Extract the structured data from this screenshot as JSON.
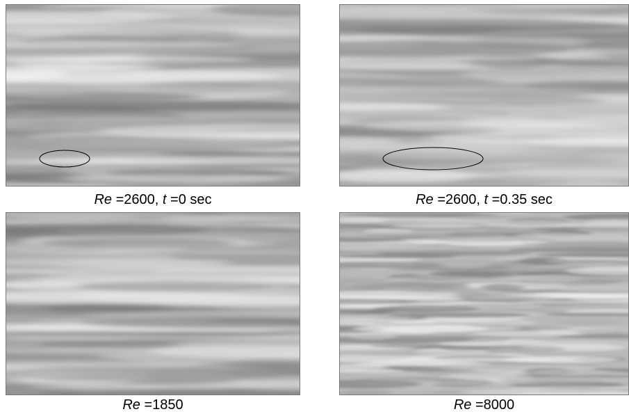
{
  "panels": [
    {
      "caption": [
        {
          "text": "Re",
          "italic": true
        },
        {
          "text": " =2600, "
        },
        {
          "text": "t",
          "italic": true
        },
        {
          "text": " =0 sec"
        }
      ]
    },
    {
      "caption": [
        {
          "text": "Re",
          "italic": true
        },
        {
          "text": " =2600, "
        },
        {
          "text": "t",
          "italic": true
        },
        {
          "text": " =0.35 sec"
        }
      ]
    },
    {
      "caption": [
        {
          "text": "Re",
          "italic": true
        },
        {
          "text": " =1850"
        }
      ]
    },
    {
      "caption": [
        {
          "text": "Re",
          "italic": true
        },
        {
          "text": " =8000"
        }
      ]
    }
  ]
}
